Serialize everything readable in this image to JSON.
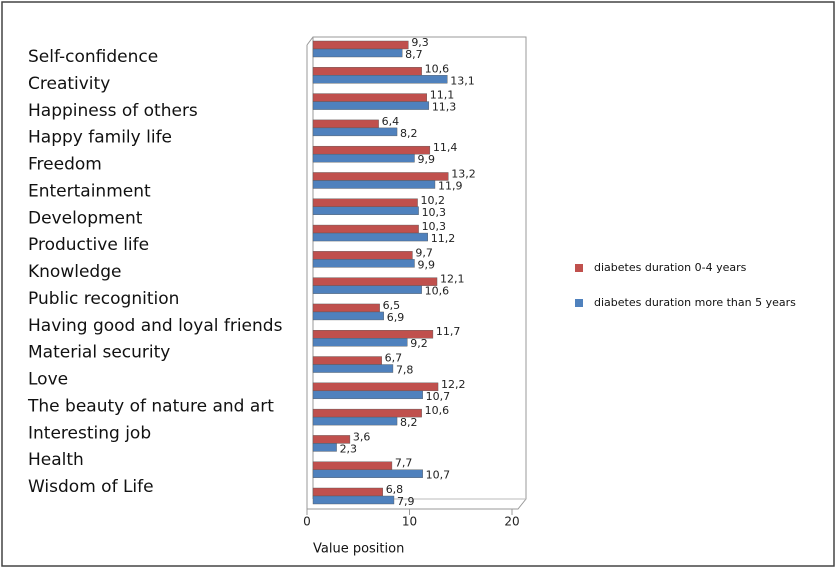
{
  "chart_data": {
    "type": "bar",
    "orientation": "horizontal",
    "x_label": "Value position",
    "categories": [
      "Self-confidence",
      "Creativity",
      "Happiness of others",
      "Happy family life",
      "Freedom",
      "Entertainment",
      "Development",
      "Productive life",
      "Knowledge",
      "Public recognition",
      "Having good and loyal friends",
      "Material security",
      "Love",
      "The beauty of nature and art",
      "Interesting job",
      "Health",
      "Wisdom of Life",
      null
    ],
    "series": [
      {
        "name": "diabetes duration 0-4 years",
        "color": "#c0504d",
        "values": [
          9.3,
          10.6,
          11.1,
          6.4,
          11.4,
          13.2,
          10.2,
          10.3,
          9.7,
          12.1,
          6.5,
          11.7,
          6.7,
          12.2,
          10.6,
          3.6,
          7.7,
          6.8
        ],
        "value_labels": [
          "9,3",
          "10,6",
          "11,1",
          "6,4",
          "11,4",
          "13,2",
          "10,2",
          "10,3",
          "9,7",
          "12,1",
          "6,5",
          "11,7",
          "6,7",
          "12,2",
          "10,6",
          "3,6",
          "7,7",
          "6,8"
        ]
      },
      {
        "name": "diabetes duration more than 5 years",
        "color": "#4f81bd",
        "values": [
          8.7,
          13.1,
          11.3,
          8.2,
          9.9,
          11.9,
          10.3,
          11.2,
          9.9,
          10.6,
          6.9,
          9.2,
          7.8,
          10.7,
          8.2,
          2.3,
          10.7,
          7.9
        ],
        "value_labels": [
          "8,7",
          "13,1",
          "11,3",
          "8,2",
          "9,9",
          "11,9",
          "10,3",
          "11,2",
          "9,9",
          "10,6",
          "6,9",
          "9,2",
          "7,8",
          "10,7",
          "8,2",
          "2,3",
          "10,7",
          "7,9"
        ]
      }
    ],
    "xlim": [
      0,
      20
    ],
    "xticks": [
      0,
      10,
      20
    ],
    "legend": "right"
  }
}
